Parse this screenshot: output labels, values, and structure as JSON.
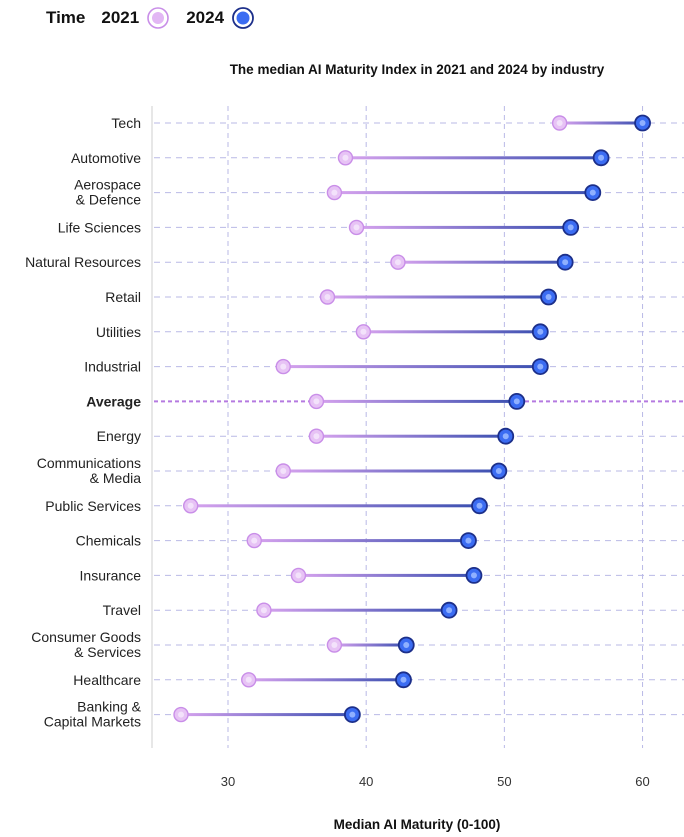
{
  "legend": {
    "title": "Time",
    "items": [
      {
        "label": "2021",
        "color": "#c98ee8"
      },
      {
        "label": "2024",
        "color": "#2f5fe8"
      }
    ]
  },
  "colors": {
    "y2021_fill": "#e7c3f5",
    "y2021_stroke": "#c98ee8",
    "y2024_fill": "#3b6cf2",
    "y2024_stroke": "#1c2f8a",
    "grid": "#b9b9e6"
  },
  "chart_data": {
    "type": "dumbbell",
    "title": "The median AI Maturity Index in 2021 and 2024 by industry",
    "xlabel": "Median AI Maturity (0-100)",
    "ylabel": "",
    "xlim": [
      24.5,
      63
    ],
    "xticks": [
      30,
      40,
      50,
      60
    ],
    "grid": true,
    "legend_position": "top-left",
    "highlighted_category": "Average",
    "series": [
      {
        "name": "2021",
        "values": [
          54,
          38.5,
          37.7,
          39.3,
          42.3,
          37.2,
          39.8,
          34,
          36.4,
          36.4,
          34,
          27.3,
          31.9,
          35.1,
          32.6,
          37.7,
          31.5,
          26.6
        ]
      },
      {
        "name": "2024",
        "values": [
          60,
          57,
          56.4,
          54.8,
          54.4,
          53.2,
          52.6,
          52.6,
          50.9,
          50.1,
          49.6,
          48.2,
          47.4,
          47.8,
          46,
          42.9,
          42.7,
          39
        ]
      }
    ],
    "categories": [
      [
        "Tech"
      ],
      [
        "Automotive"
      ],
      [
        "Aerospace",
        "& Defence"
      ],
      [
        "Life Sciences"
      ],
      [
        "Natural Resources"
      ],
      [
        "Retail"
      ],
      [
        "Utilities"
      ],
      [
        "Industrial"
      ],
      [
        "Average"
      ],
      [
        "Energy"
      ],
      [
        "Communications",
        "& Media"
      ],
      [
        "Public Services"
      ],
      [
        "Chemicals"
      ],
      [
        "Insurance"
      ],
      [
        "Travel"
      ],
      [
        "Consumer Goods",
        "& Services"
      ],
      [
        "Healthcare"
      ],
      [
        "Banking &",
        "Capital Markets"
      ]
    ]
  }
}
